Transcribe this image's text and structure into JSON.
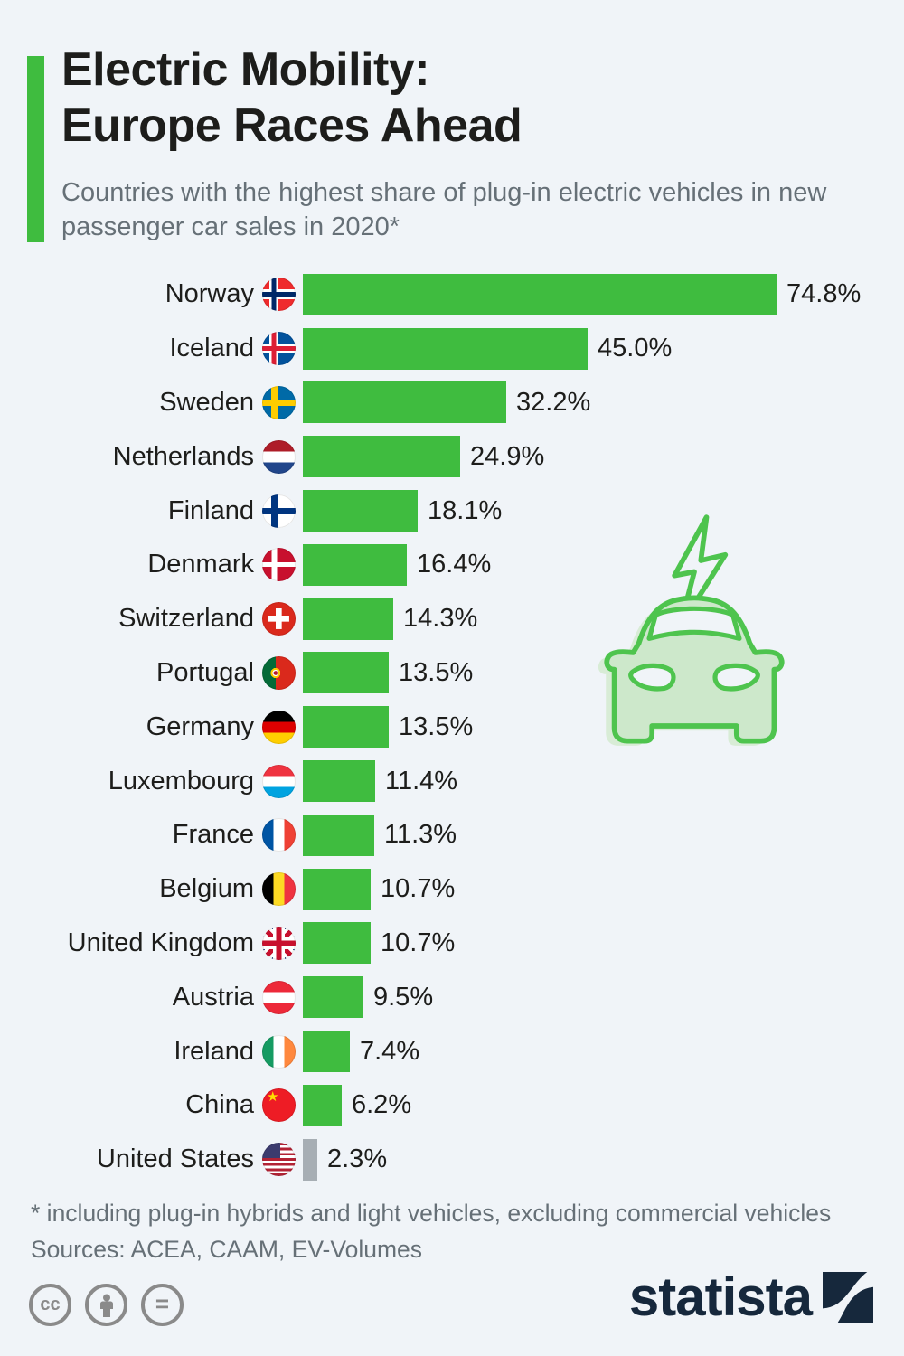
{
  "header": {
    "title_line1": "Electric Mobility:",
    "title_line2": "Europe Races Ahead",
    "subtitle": "Countries with the highest share of plug-in electric vehicles in new passenger car sales in 2020*"
  },
  "chart_data": {
    "type": "bar",
    "orientation": "horizontal",
    "title": "Electric Mobility: Europe Races Ahead",
    "subtitle": "Countries with the highest share of plug-in electric vehicles in new passenger car sales in 2020*",
    "unit": "%",
    "xlim": [
      0,
      80
    ],
    "grid": false,
    "legend": "none",
    "categories": [
      "Norway",
      "Iceland",
      "Sweden",
      "Netherlands",
      "Finland",
      "Denmark",
      "Switzerland",
      "Portugal",
      "Germany",
      "Luxembourg",
      "France",
      "Belgium",
      "United Kingdom",
      "Austria",
      "Ireland",
      "China",
      "United States"
    ],
    "values": [
      74.8,
      45.0,
      32.2,
      24.9,
      18.1,
      16.4,
      14.3,
      13.5,
      13.5,
      11.4,
      11.3,
      10.7,
      10.7,
      9.5,
      7.4,
      6.2,
      2.3
    ],
    "labels": [
      "74.8%",
      "45.0%",
      "32.2%",
      "24.9%",
      "18.1%",
      "16.4%",
      "14.3%",
      "13.5%",
      "13.5%",
      "11.4%",
      "11.3%",
      "10.7%",
      "10.7%",
      "9.5%",
      "7.4%",
      "6.2%",
      "2.3%"
    ],
    "flags": [
      "norway",
      "iceland",
      "sweden",
      "netherlands",
      "finland",
      "denmark",
      "switzerland",
      "portugal",
      "germany",
      "luxembourg",
      "france",
      "belgium",
      "united-kingdom",
      "austria",
      "ireland",
      "china",
      "united-states"
    ],
    "colors": [
      "green",
      "green",
      "green",
      "green",
      "green",
      "green",
      "green",
      "green",
      "green",
      "green",
      "green",
      "green",
      "green",
      "green",
      "green",
      "green",
      "gray"
    ],
    "bar_color_hex": "#3fbc3f",
    "gray_bar_color_hex": "#a7aeb4"
  },
  "footnote": {
    "line1": "* including plug-in hybrids and light vehicles, excluding commercial vehicles",
    "line2": "Sources: ACEA, CAAM, EV-Volumes"
  },
  "footer": {
    "brand": "statista",
    "cc_text": "cc",
    "nd_text": "=",
    "license_icons": [
      "cc-license-icon",
      "attribution-icon",
      "no-derivatives-icon"
    ]
  }
}
